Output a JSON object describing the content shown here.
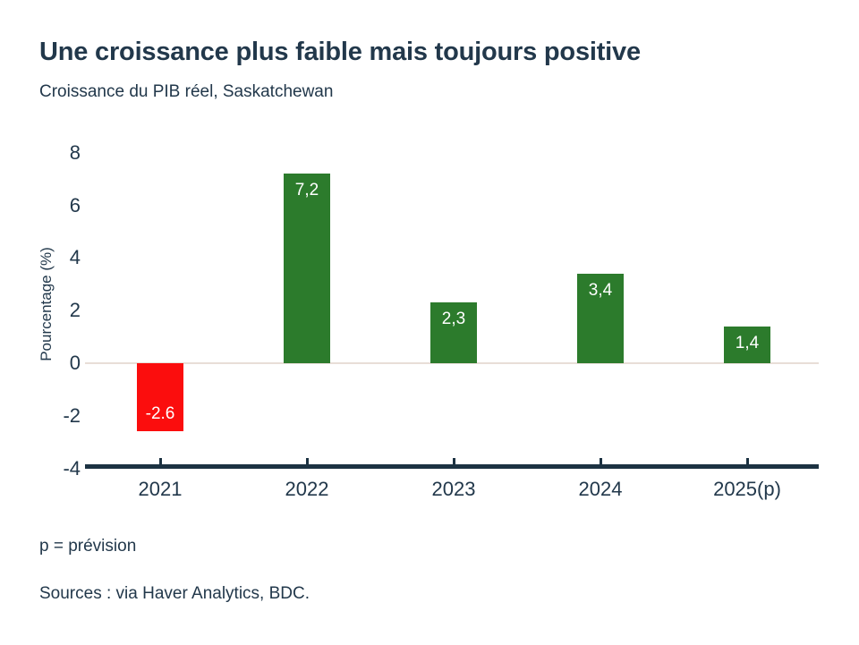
{
  "title": "Une croissance plus faible mais toujours positive",
  "subtitle": "Croissance du PIB réel, Saskatchewan",
  "footnote": "p = prévision",
  "source": "Sources : via Haver Analytics, BDC.",
  "colors": {
    "text": "#22384B",
    "axis_line": "#1C3242",
    "zero_line": "#E8DED7",
    "bar_positive": "#2C7B2C",
    "bar_negative": "#FB0D0D",
    "bar_label": "#FFFFFF"
  },
  "chart_data": {
    "type": "bar",
    "title": "Une croissance plus faible mais toujours positive",
    "subtitle": "Croissance du PIB réel, Saskatchewan",
    "categories": [
      "2021",
      "2022",
      "2023",
      "2024",
      "2025(p)"
    ],
    "values": [
      -2.6,
      7.2,
      2.3,
      3.4,
      1.4
    ],
    "value_labels": [
      "-2.6",
      "7,2",
      "2,3",
      "3,4",
      "1,4"
    ],
    "xlabel": "",
    "ylabel": "Pourcentage (%)",
    "ylim": [
      -4,
      8
    ],
    "yticks": [
      8,
      6,
      4,
      2,
      0,
      -2,
      -4
    ],
    "grid": false,
    "legend_position": "none",
    "negative_color_note": "negative values red, positive values green"
  }
}
